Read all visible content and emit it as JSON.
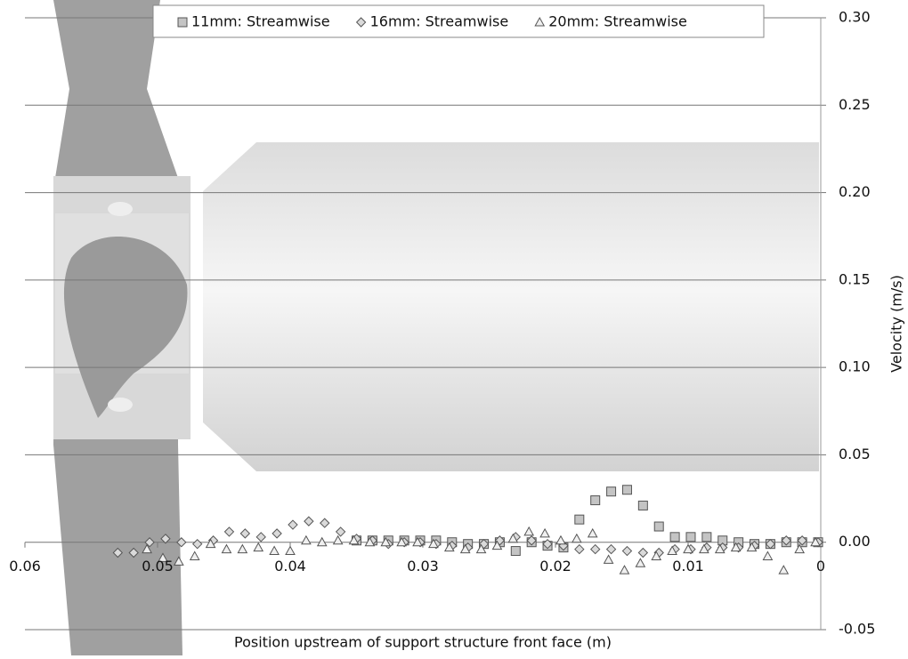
{
  "chart_data": {
    "type": "scatter",
    "xlabel": "Position upstream of support structure front face (m)",
    "ylabel": "Velocity (m/s)",
    "xlim": [
      0.06,
      0
    ],
    "ylim": [
      -0.05,
      0.3
    ],
    "xticks": [
      0.06,
      0.05,
      0.04,
      0.03,
      0.02,
      0.01,
      0
    ],
    "yticks": [
      {
        "value": 0.3,
        "label": "0.30"
      },
      0.25,
      {
        "value": 0.2,
        "label": "0.20"
      },
      0.15,
      {
        "value": 0.1,
        "label": "0.10"
      },
      0.05,
      {
        "value": 0,
        "label": "0.00"
      },
      -0.05
    ],
    "grid": true,
    "legend": "top",
    "series": [
      {
        "name": "11mm: Streamwise",
        "color": "#c4c4c4",
        "marker": "square",
        "x": [
          0.035,
          0.0338,
          0.0326,
          0.0314,
          0.0302,
          0.029,
          0.0278,
          0.0266,
          0.0254,
          0.0242,
          0.023,
          0.0218,
          0.0206,
          0.0194,
          0.0182,
          0.017,
          0.0158,
          0.0146,
          0.0134,
          0.0122,
          0.011,
          0.0098,
          0.0086,
          0.0074,
          0.0062,
          0.005,
          0.0038,
          0.0026,
          0.0014,
          0.0002
        ],
        "values": [
          0.001,
          0.001,
          0.001,
          0.001,
          0.001,
          0.001,
          0,
          -0.001,
          -0.001,
          0,
          -0.005,
          0,
          -0.002,
          -0.003,
          0.013,
          0.024,
          0.029,
          0.03,
          0.021,
          0.009,
          0.003,
          0.003,
          0.003,
          0.001,
          0,
          -0.001,
          -0.001,
          0,
          0,
          0
        ]
      },
      {
        "name": "16mm: Streamwise",
        "color": "#dadada",
        "marker": "diamond",
        "x": [
          0.053,
          0.0518,
          0.0506,
          0.0494,
          0.0482,
          0.047,
          0.0458,
          0.0446,
          0.0434,
          0.0422,
          0.041,
          0.0398,
          0.0386,
          0.0374,
          0.0362,
          0.035,
          0.0338,
          0.0326,
          0.0314,
          0.0302,
          0.029,
          0.0278,
          0.0266,
          0.0254,
          0.0242,
          0.023,
          0.0218,
          0.0206,
          0.0194,
          0.0182,
          0.017,
          0.0158,
          0.0146,
          0.0134,
          0.0122,
          0.011,
          0.0098,
          0.0086,
          0.0074,
          0.0062,
          0.005,
          0.0038,
          0.0026,
          0.0014,
          0.0002
        ],
        "values": [
          -0.006,
          -0.006,
          0,
          0.002,
          0,
          -0.001,
          0.001,
          0.006,
          0.005,
          0.003,
          0.005,
          0.01,
          0.012,
          0.011,
          0.006,
          0.002,
          0.001,
          -0.001,
          0,
          0,
          -0.001,
          -0.002,
          -0.003,
          -0.001,
          0.001,
          0.003,
          0.001,
          -0.001,
          -0.002,
          -0.004,
          -0.004,
          -0.004,
          -0.005,
          -0.006,
          -0.006,
          -0.004,
          -0.004,
          -0.003,
          -0.003,
          -0.003,
          -0.002,
          -0.001,
          0.001,
          0.001,
          0
        ]
      },
      {
        "name": "20mm: Streamwise",
        "color": "#f0f0f0",
        "marker": "triangle",
        "x": [
          0.0508,
          0.0496,
          0.0484,
          0.0472,
          0.046,
          0.0448,
          0.0436,
          0.0424,
          0.0412,
          0.04,
          0.0388,
          0.0376,
          0.0364,
          0.0352,
          0.034,
          0.0328,
          0.0316,
          0.0304,
          0.0292,
          0.028,
          0.0268,
          0.0256,
          0.0244,
          0.0232,
          0.022,
          0.0208,
          0.0196,
          0.0184,
          0.0172,
          0.016,
          0.0148,
          0.0136,
          0.0124,
          0.0112,
          0.01,
          0.0088,
          0.0076,
          0.0064,
          0.0052,
          0.004,
          0.0028,
          0.0016,
          0.0004
        ],
        "values": [
          -0.004,
          -0.009,
          -0.011,
          -0.008,
          -0.001,
          -0.004,
          -0.004,
          -0.003,
          -0.005,
          -0.005,
          0.001,
          0,
          0.001,
          0.001,
          0,
          0,
          0,
          0,
          -0.001,
          -0.003,
          -0.004,
          -0.004,
          -0.002,
          0.002,
          0.006,
          0.005,
          0.001,
          0.002,
          0.005,
          -0.01,
          -0.016,
          -0.012,
          -0.008,
          -0.005,
          -0.004,
          -0.004,
          -0.004,
          -0.003,
          -0.003,
          -0.008,
          -0.016,
          -0.004,
          0
        ]
      }
    ]
  }
}
